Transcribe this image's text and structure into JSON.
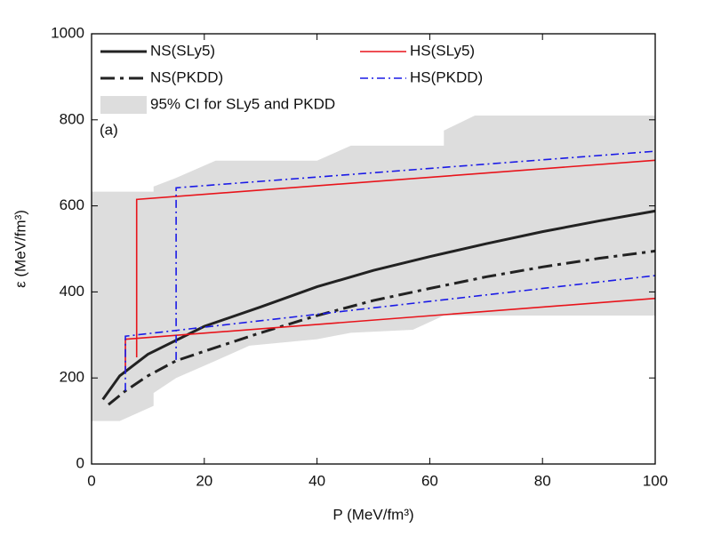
{
  "chart_data": {
    "type": "line",
    "xlabel": "P (MeV/fm³)",
    "ylabel": "ε (MeV/fm³)",
    "annotation": "(a)",
    "xlim": [
      0,
      100
    ],
    "xticks": [
      0,
      20,
      40,
      60,
      80,
      100
    ],
    "ylim": [
      0,
      1000
    ],
    "yticks": [
      0,
      200,
      400,
      600,
      800,
      1000
    ],
    "legend": "upper left",
    "band": {
      "name": "95% CI for SLy5 and PKDD",
      "color": "#dddddd",
      "x": [
        0,
        5,
        11,
        11,
        15,
        22,
        28,
        40,
        46,
        57,
        62.5,
        62.5,
        68,
        100
      ],
      "upper": [
        633,
        633,
        633,
        645,
        665,
        705,
        705,
        705,
        740,
        740,
        740,
        775,
        810,
        810
      ],
      "lower": [
        100,
        100,
        135,
        165,
        200,
        240,
        275,
        290,
        305,
        312,
        345,
        345,
        345,
        345
      ]
    },
    "series": [
      {
        "name": "NS(SLy5)",
        "color": "#222222",
        "linestyle": "solid",
        "x": [
          2,
          5,
          10,
          20,
          30,
          40,
          50,
          60,
          70,
          80,
          90,
          100
        ],
        "values": [
          150,
          205,
          255,
          320,
          365,
          412,
          450,
          482,
          512,
          540,
          565,
          588
        ]
      },
      {
        "name": "NS(PKDD)",
        "color": "#222222",
        "linestyle": "dashdot",
        "x": [
          3,
          6,
          10,
          15,
          20,
          30,
          40,
          50,
          60,
          70,
          80,
          90,
          100
        ],
        "values": [
          138,
          170,
          205,
          240,
          262,
          305,
          345,
          380,
          408,
          435,
          458,
          478,
          495
        ]
      },
      {
        "name": "HS(SLy5)",
        "color": "#e8141b",
        "linestyle": "solid",
        "x": [
          6,
          6,
          100,
          null,
          8,
          8,
          100
        ],
        "values": [
          215,
          290,
          385,
          null,
          248,
          615,
          706
        ]
      },
      {
        "name": "HS(PKDD)",
        "color": "#1a1ae6",
        "linestyle": "dashdot",
        "x": [
          6,
          6,
          100,
          null,
          15,
          15,
          100
        ],
        "values": [
          170,
          297,
          438,
          null,
          242,
          642,
          727
        ]
      }
    ]
  }
}
